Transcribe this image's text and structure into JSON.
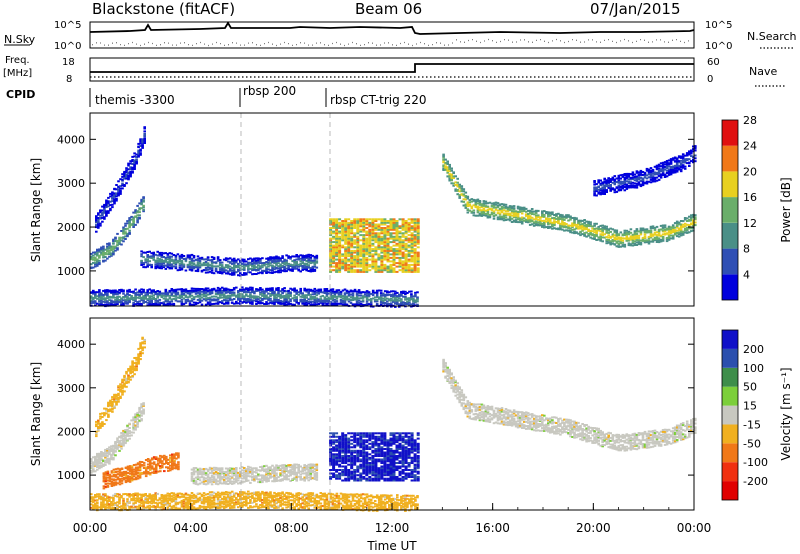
{
  "header": {
    "station": "Blackstone (fitACF)",
    "beam": "Beam 06",
    "date": "07/Jan/2015"
  },
  "top_panels": {
    "nsky_label": "N.Sky",
    "nsky_ticks": [
      "10^5",
      "10^0"
    ],
    "nsearch_label": "N.Search",
    "nsearch_ticks": [
      "10^5",
      "10^0"
    ],
    "freq_label_1": "Freq.",
    "freq_label_2": "[MHz]",
    "freq_ticks": [
      "18",
      "8"
    ],
    "nave_label": "Nave",
    "nave_ticks": [
      "60",
      "0"
    ],
    "cpid_label": "CPID",
    "cpid_segments": [
      {
        "label": "themis -3300",
        "start_hour": 0.0
      },
      {
        "label": "rbsp 200",
        "start_hour": 6.0
      },
      {
        "label": "rbsp CT-trig 220",
        "start_hour": 9.33
      }
    ]
  },
  "chart_data": [
    {
      "type": "heatmap",
      "panel": "power",
      "ylabel": "Slant Range [km]",
      "yticks": [
        "1000",
        "2000",
        "3000",
        "4000"
      ],
      "ylim": [
        200,
        4600
      ],
      "xlim_hours": [
        0,
        24
      ],
      "colorbar_label": "Power [dB]",
      "colorbar_ticks": [
        "4",
        "8",
        "12",
        "16",
        "20",
        "24",
        "28"
      ],
      "colors": [
        "#0000dd",
        "#2f4fb5",
        "#4a8f87",
        "#6aae6a",
        "#e8d020",
        "#f07818",
        "#e01010"
      ],
      "features": [
        {
          "name": "early-arc",
          "t": [
            0.0,
            0.8,
            1.6,
            2.1
          ],
          "r": [
            1250,
            1500,
            2100,
            2550
          ],
          "level": 3
        },
        {
          "name": "early-arc-upper",
          "t": [
            0.2,
            1.0,
            1.8,
            2.2
          ],
          "r": [
            2100,
            2800,
            3600,
            4250
          ],
          "level": 1
        },
        {
          "name": "band-1200",
          "t": [
            2.0,
            3.0,
            4.0,
            5.0,
            6.0,
            7.0,
            8.0,
            9.0
          ],
          "r": [
            1300,
            1250,
            1200,
            1150,
            1100,
            1150,
            1200,
            1200
          ],
          "level": 2
        },
        {
          "name": "low-band",
          "t": [
            0.0,
            3.0,
            6.0,
            9.0,
            12.0,
            13.0
          ],
          "r": [
            400,
            420,
            460,
            430,
            380,
            360
          ],
          "level": 2
        },
        {
          "name": "patch-1130-1300",
          "t": [
            9.5,
            13.0
          ],
          "r": [
            1000,
            2200
          ],
          "level": 4
        },
        {
          "name": "arc-evening",
          "t": [
            14.0,
            15.0,
            17.0,
            19.0,
            21.0,
            23.0,
            24.0
          ],
          "r": [
            3500,
            2500,
            2300,
            2100,
            1750,
            1900,
            2150
          ],
          "level": 4
        },
        {
          "name": "arc-evening-upper",
          "t": [
            20.0,
            22.0,
            23.5,
            24.0
          ],
          "r": [
            2900,
            3150,
            3500,
            3700
          ],
          "level": 1
        }
      ]
    },
    {
      "type": "heatmap",
      "panel": "velocity",
      "ylabel": "Slant Range [km]",
      "yticks": [
        "1000",
        "2000",
        "3000",
        "4000"
      ],
      "ylim": [
        200,
        4600
      ],
      "xlim_hours": [
        0,
        24
      ],
      "xticks": [
        "00:00",
        "04:00",
        "08:00",
        "12:00",
        "16:00",
        "20:00",
        "00:00"
      ],
      "xlabel": "Time UT",
      "colorbar_label": "Velocity [m s⁻¹]",
      "colorbar_ticks": [
        "200",
        "100",
        "50",
        "15",
        "-15",
        "-50",
        "-100",
        "-200"
      ],
      "colors": [
        "#1010c8",
        "#2b4fae",
        "#3e8e4a",
        "#7ccf3a",
        "#c8c8c0",
        "#f0b020",
        "#f07818",
        "#f03010",
        "#e00000"
      ],
      "features": [
        {
          "name": "early-arc",
          "t": [
            0.0,
            0.8,
            1.6,
            2.1
          ],
          "r": [
            1250,
            1500,
            2100,
            2550
          ],
          "level": 4
        },
        {
          "name": "early-arc-upper",
          "t": [
            0.2,
            1.0,
            1.8,
            2.2
          ],
          "r": [
            2100,
            2800,
            3600,
            4250
          ],
          "level": 5
        },
        {
          "name": "orange-patch",
          "t": [
            0.5,
            1.5,
            2.5,
            3.5
          ],
          "r": [
            900,
            1050,
            1250,
            1350
          ],
          "level": 6
        },
        {
          "name": "grey-band",
          "t": [
            4.0,
            5.5,
            7.0,
            9.0
          ],
          "r": [
            1000,
            1000,
            1050,
            1100
          ],
          "level": 4
        },
        {
          "name": "low-band",
          "t": [
            0.0,
            3.0,
            6.0,
            9.0,
            12.0,
            13.0
          ],
          "r": [
            400,
            420,
            460,
            430,
            380,
            360
          ],
          "level": 5
        },
        {
          "name": "blue-patch",
          "t": [
            9.5,
            13.0
          ],
          "r": [
            900,
            2000
          ],
          "level": 0
        },
        {
          "name": "arc-evening",
          "t": [
            14.0,
            15.0,
            17.0,
            19.0,
            21.0,
            23.0,
            24.0
          ],
          "r": [
            3500,
            2500,
            2300,
            2100,
            1750,
            1900,
            2150
          ],
          "level": 4
        }
      ]
    }
  ]
}
